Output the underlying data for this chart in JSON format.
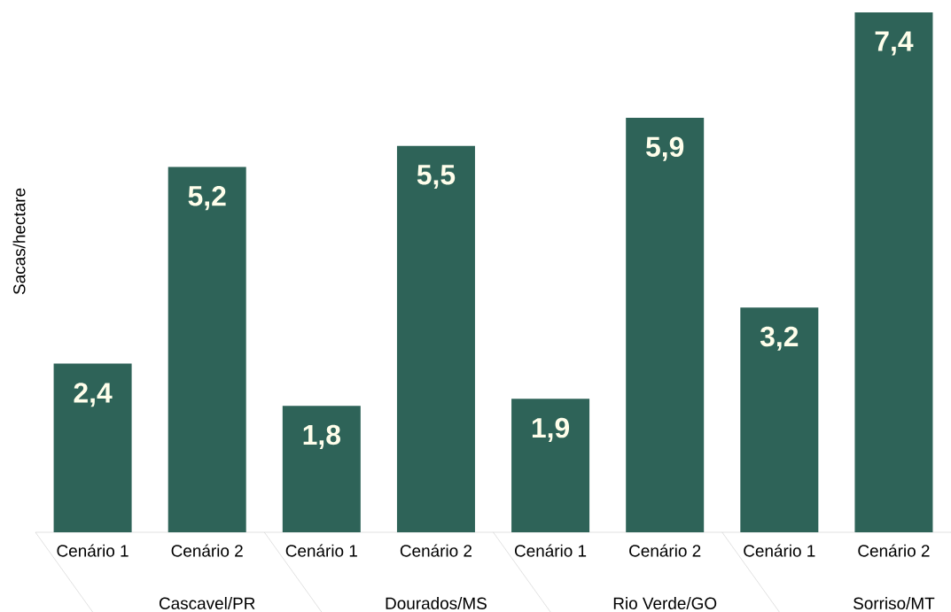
{
  "chart_data": {
    "type": "bar",
    "ylabel": "Sacas/hectare",
    "categories": [
      "Cenário 1",
      "Cenário 2",
      "Cenário 1",
      "Cenário 2",
      "Cenário 1",
      "Cenário 2",
      "Cenário 1",
      "Cenário 2"
    ],
    "values": [
      2.4,
      5.2,
      1.8,
      5.5,
      1.9,
      5.9,
      3.2,
      7.4
    ],
    "value_labels": [
      "2,4",
      "5,2",
      "1,8",
      "5,5",
      "1,9",
      "5,9",
      "3,2",
      "7,4"
    ],
    "color": "#2e6358",
    "ylim": [
      0,
      7.4
    ],
    "tick_labels": "x",
    "annotations": [
      "Cascavel/PR",
      "Dourados/MS",
      "Rio Verde/GO",
      "Sorriso/MT"
    ]
  }
}
